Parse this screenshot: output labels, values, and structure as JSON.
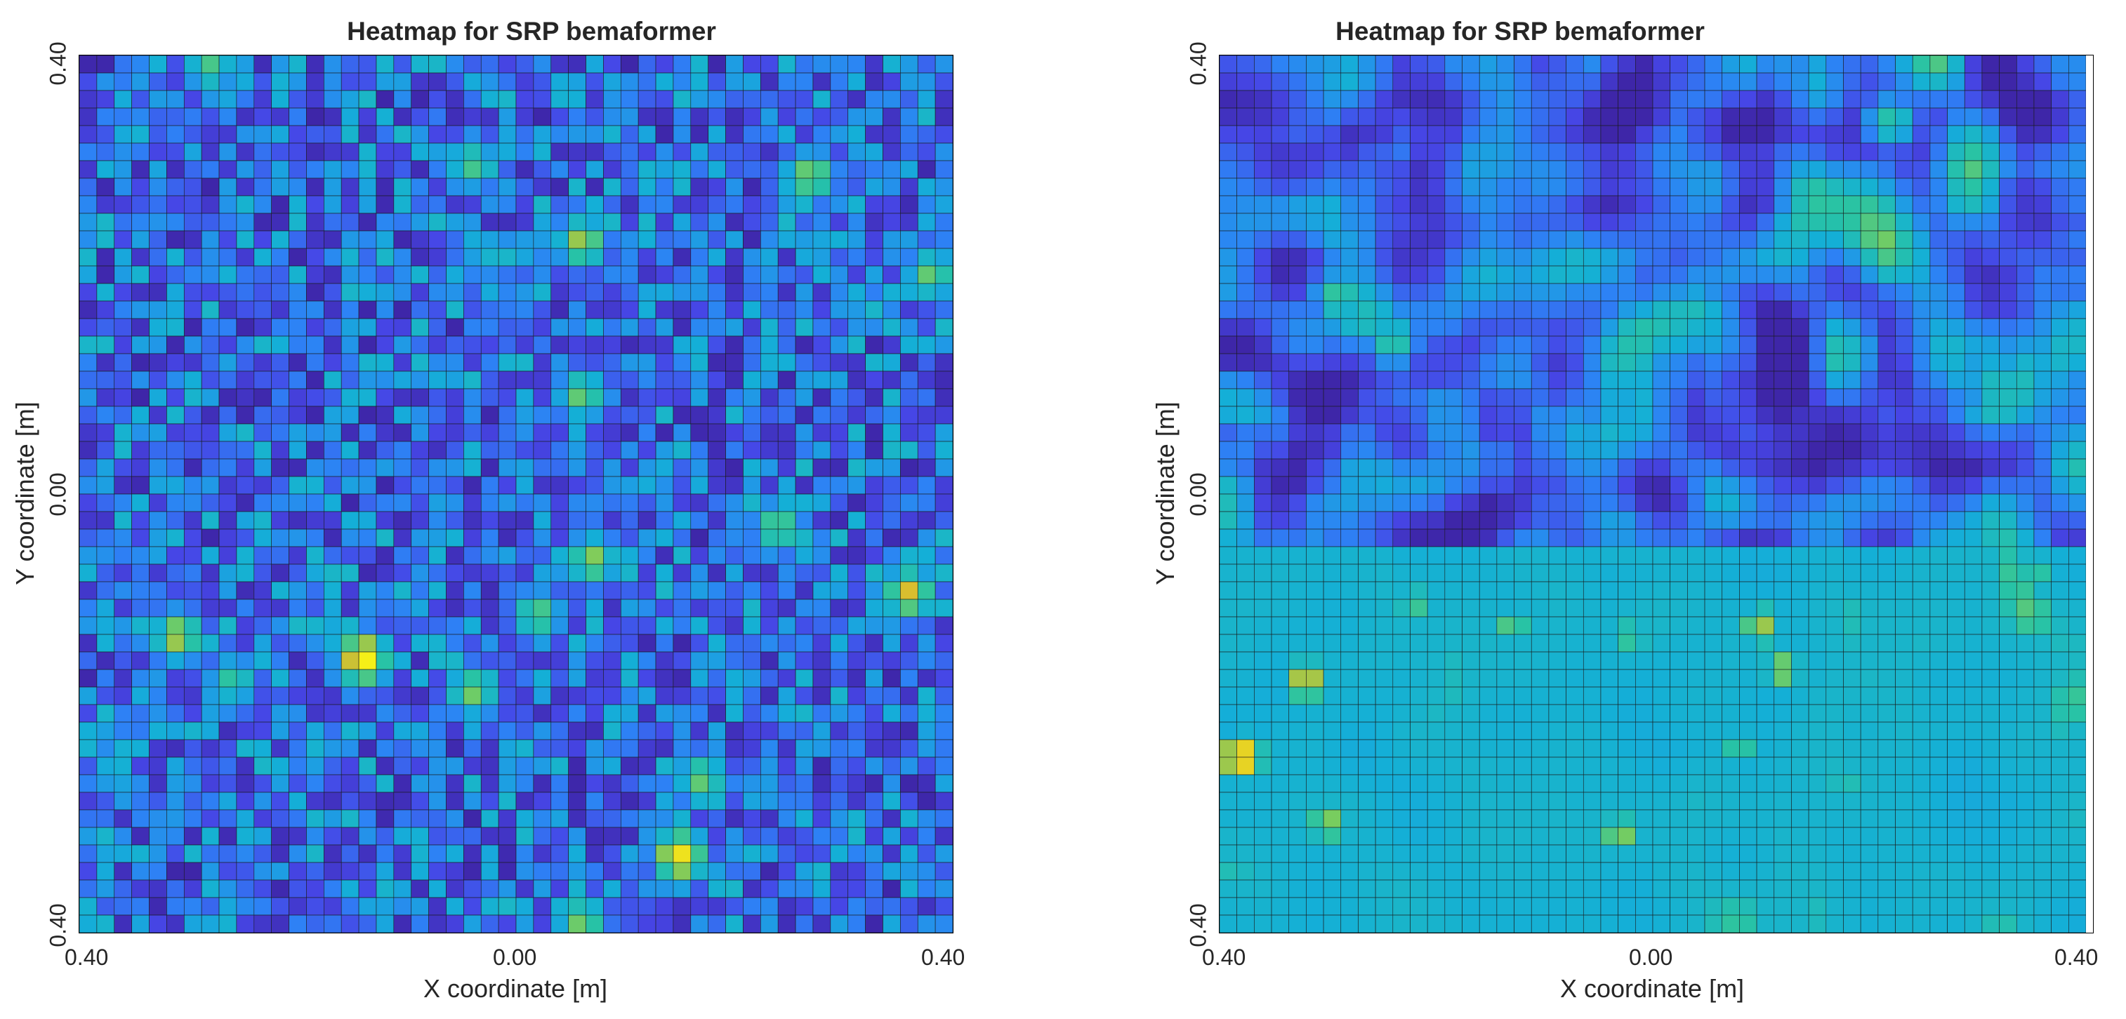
{
  "chart_data": [
    {
      "type": "heatmap",
      "title": "Heatmap for SRP bemaformer",
      "xlabel": "X coordinate [m]",
      "ylabel": "Y coordinate [m]",
      "xlim": [
        -0.4,
        0.4
      ],
      "ylim": [
        -0.4,
        0.4
      ],
      "x_tick_labels": [
        "0.40",
        "0.00",
        "0.40"
      ],
      "y_tick_labels": [
        "0.40",
        "0.00",
        "0.40"
      ],
      "grid_size": [
        50,
        50
      ],
      "colormap": "parula",
      "value_range": [
        0,
        1
      ],
      "hotspots": [
        {
          "x": -0.14,
          "y": -0.15,
          "value": 1.0
        },
        {
          "x": 0.15,
          "y": -0.33,
          "value": 0.95
        },
        {
          "x": 0.36,
          "y": -0.09,
          "value": 0.85
        },
        {
          "x": -0.31,
          "y": -0.13,
          "value": 0.8
        },
        {
          "x": 0.27,
          "y": 0.29,
          "value": 0.75
        },
        {
          "x": 0.06,
          "y": 0.23,
          "value": 0.78
        },
        {
          "x": 0.06,
          "y": 0.09,
          "value": 0.7
        },
        {
          "x": -0.04,
          "y": -0.18,
          "value": 0.72
        },
        {
          "x": 0.07,
          "y": -0.06,
          "value": 0.75
        },
        {
          "x": 0.02,
          "y": -0.11,
          "value": 0.68
        },
        {
          "x": 0.38,
          "y": 0.2,
          "value": 0.7
        },
        {
          "x": -0.28,
          "y": 0.39,
          "value": 0.65
        },
        {
          "x": 0.24,
          "y": -0.03,
          "value": 0.7
        },
        {
          "x": 0.17,
          "y": -0.26,
          "value": 0.7
        },
        {
          "x": 0.06,
          "y": -0.39,
          "value": 0.72
        },
        {
          "x": -0.04,
          "y": 0.3,
          "value": 0.65
        },
        {
          "x": -0.26,
          "y": -0.17,
          "value": 0.62
        }
      ]
    },
    {
      "type": "heatmap",
      "title": "Heatmap for SRP bemaformer",
      "xlabel": "X coordinate [m]",
      "ylabel": "Y coordinate [m]",
      "xlim": [
        -0.4,
        0.4
      ],
      "ylim": [
        -0.4,
        0.4
      ],
      "x_tick_labels": [
        "0.40",
        "0.00",
        "0.40"
      ],
      "y_tick_labels": [
        "0.40",
        "0.00",
        "0.40"
      ],
      "grid_size": [
        50,
        50
      ],
      "colormap": "parula",
      "value_range": [
        0,
        1
      ],
      "hotspots": [
        {
          "x": -0.38,
          "y": -0.24,
          "value": 1.0
        },
        {
          "x": -0.32,
          "y": -0.17,
          "value": 0.85
        },
        {
          "x": -0.3,
          "y": -0.3,
          "value": 0.75
        },
        {
          "x": 0.1,
          "y": -0.12,
          "value": 0.78
        },
        {
          "x": 0.12,
          "y": -0.16,
          "value": 0.75
        },
        {
          "x": -0.03,
          "y": -0.31,
          "value": 0.75
        },
        {
          "x": -0.29,
          "y": 0.18,
          "value": 0.65
        },
        {
          "x": -0.24,
          "y": 0.14,
          "value": 0.62
        },
        {
          "x": -0.22,
          "y": -0.1,
          "value": 0.65
        },
        {
          "x": -0.13,
          "y": -0.12,
          "value": 0.68
        },
        {
          "x": -0.02,
          "y": -0.13,
          "value": 0.65
        },
        {
          "x": 0.08,
          "y": -0.23,
          "value": 0.65
        },
        {
          "x": 0.36,
          "y": -0.07,
          "value": 0.6
        },
        {
          "x": 0.22,
          "y": 0.34,
          "value": 0.6
        }
      ],
      "elevated_region": {
        "x_range": [
          -0.4,
          0.4
        ],
        "y_range": [
          -0.4,
          -0.05
        ],
        "base_value": 0.45
      }
    }
  ]
}
